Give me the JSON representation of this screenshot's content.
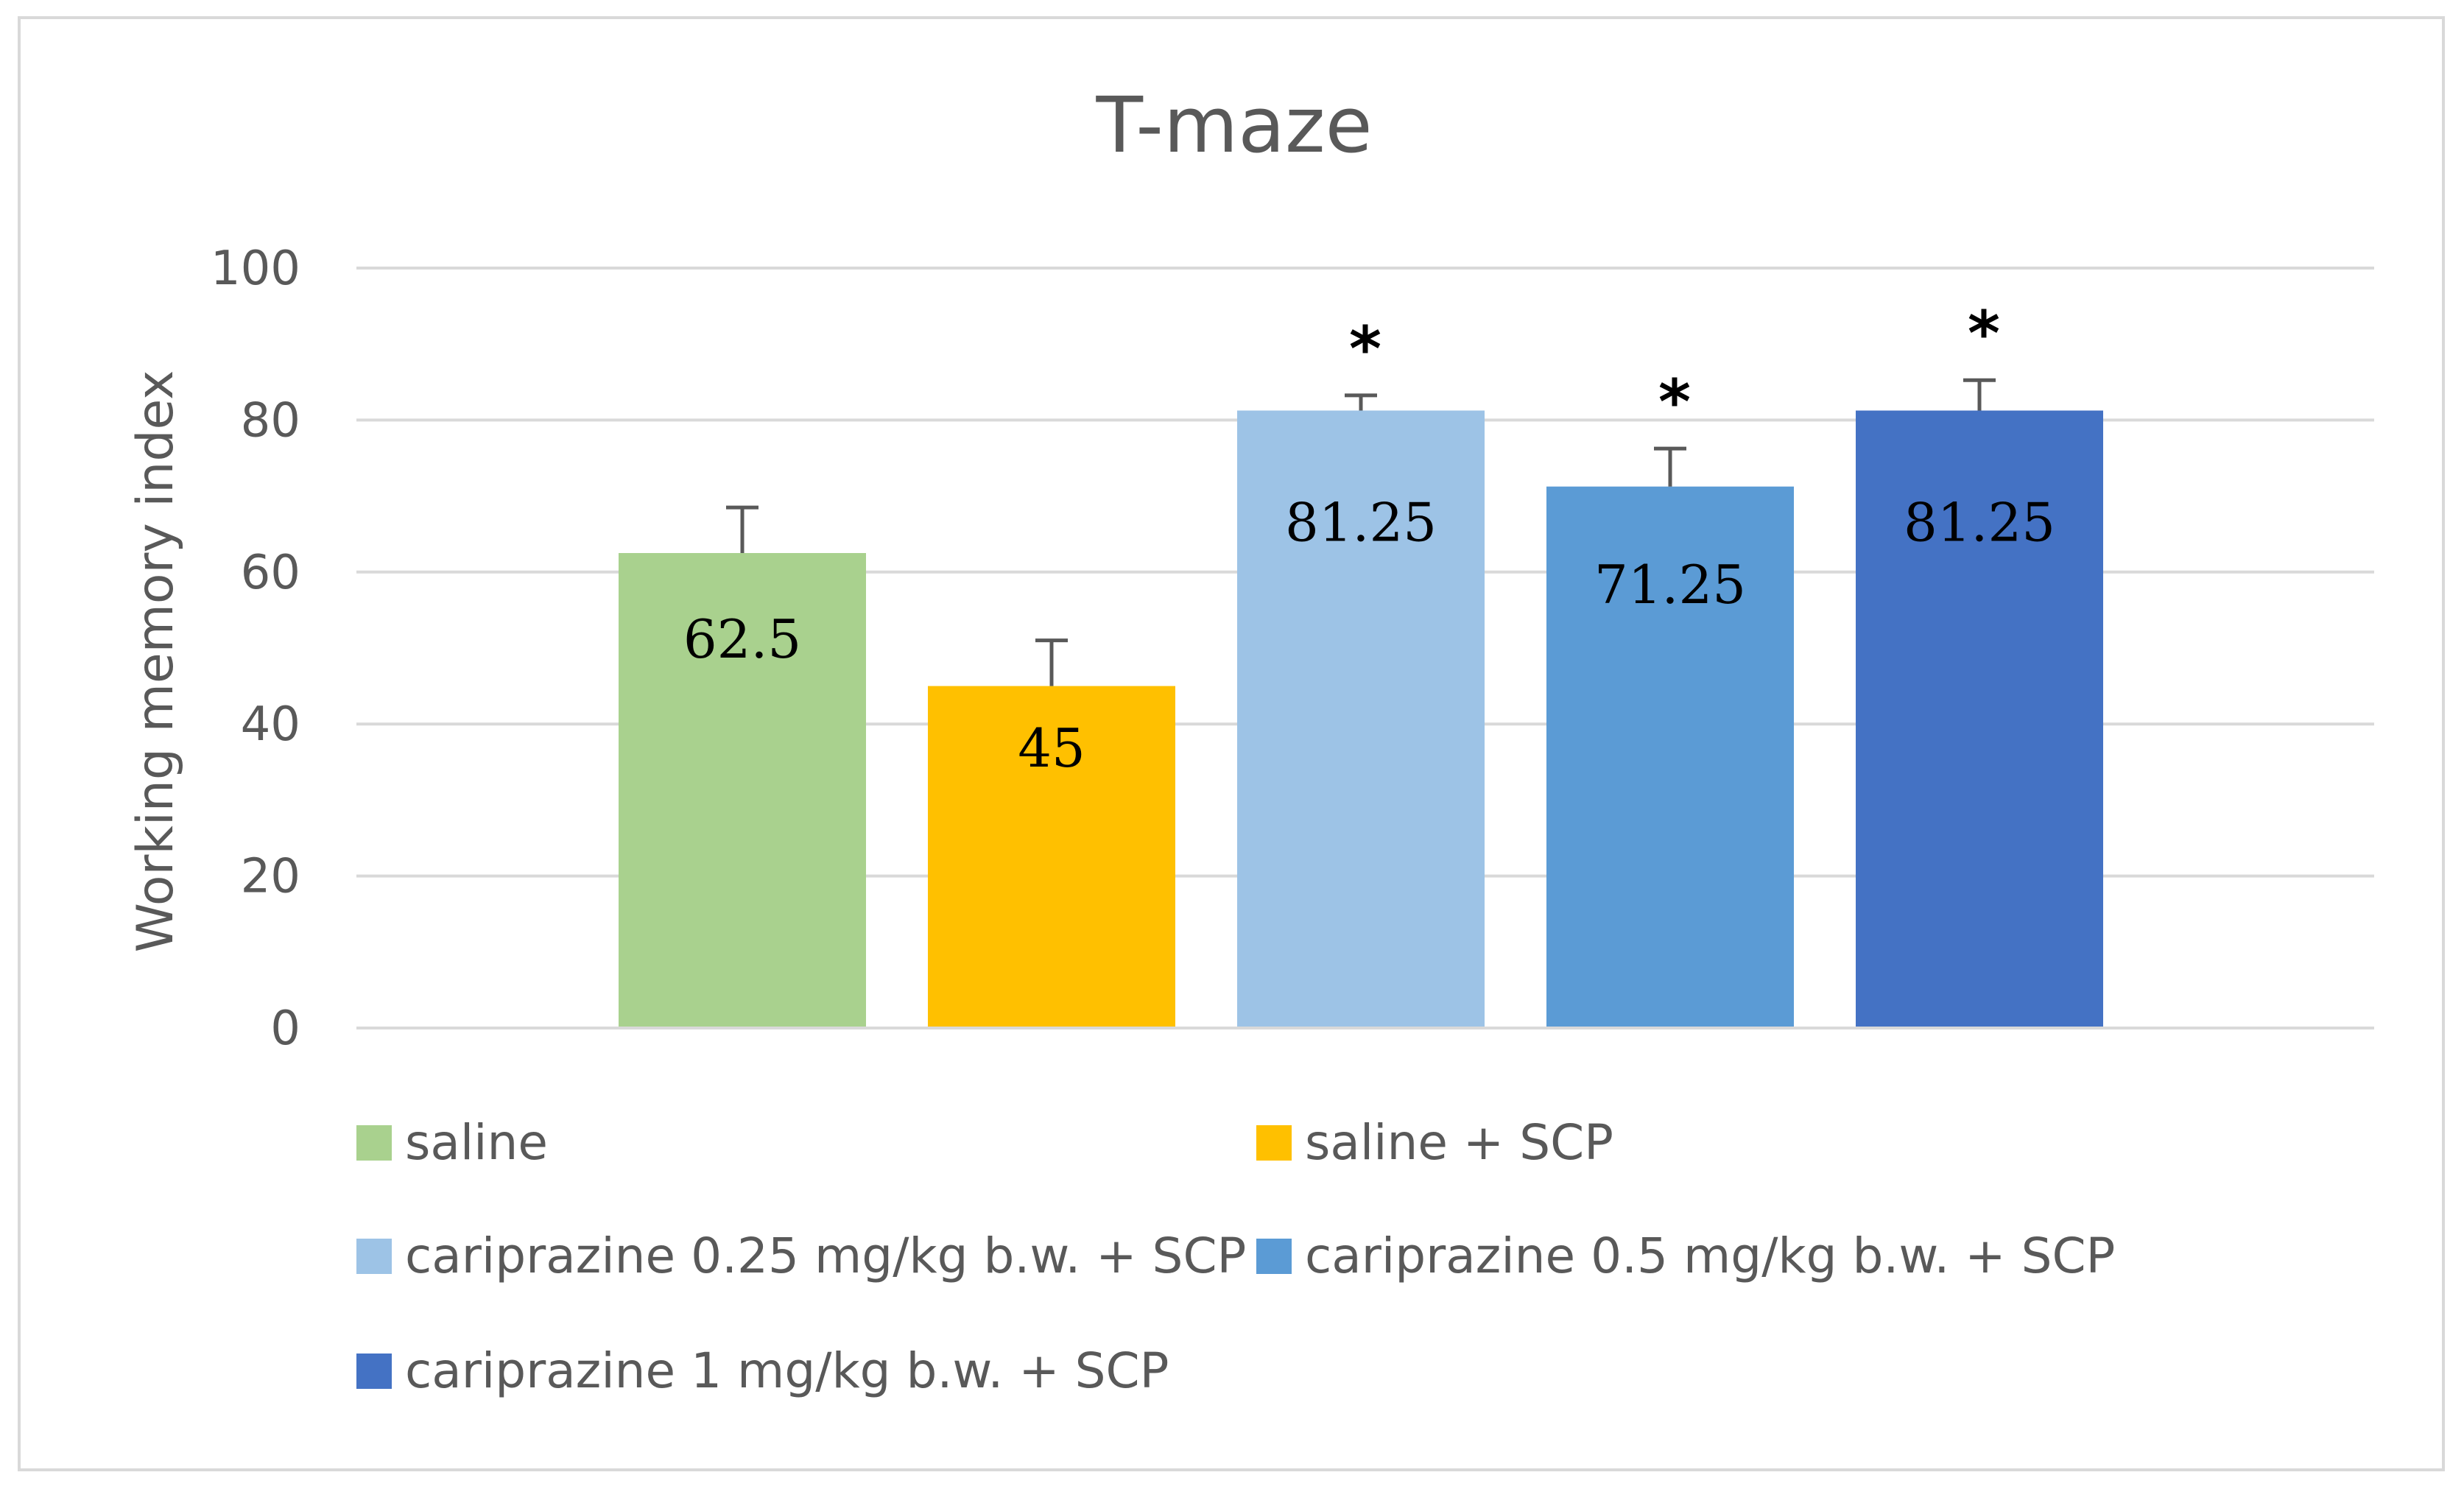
{
  "chart_data": {
    "type": "bar",
    "title": "T-maze",
    "xlabel": "",
    "ylabel": "Working memory index",
    "ylim": [
      0,
      100
    ],
    "yticks": [
      0,
      20,
      40,
      60,
      80,
      100
    ],
    "grid": true,
    "legend_position": "bottom",
    "categories": [
      "saline",
      "saline + SCP",
      "cariprazine 0.25 mg/kg b.w. + SCP",
      "cariprazine 0.5 mg/kg b.w. + SCP",
      "cariprazine 1 mg/kg b.w. + SCP"
    ],
    "values": [
      62.5,
      45,
      81.25,
      71.25,
      81.25
    ],
    "value_labels": [
      "62.5",
      "45",
      "81.25",
      "71.25",
      "81.25"
    ],
    "errors": [
      6,
      6,
      2,
      5,
      4
    ],
    "significance": [
      "",
      "",
      "*",
      "*",
      "*"
    ],
    "colors": [
      "#a9d18e",
      "#ffc000",
      "#9dc3e6",
      "#5b9bd5",
      "#4472c4"
    ]
  },
  "colors": {
    "grid": "#d9d9d9",
    "axis": "#d9d9d9",
    "text": "#595959",
    "error_bar": "#595959"
  }
}
